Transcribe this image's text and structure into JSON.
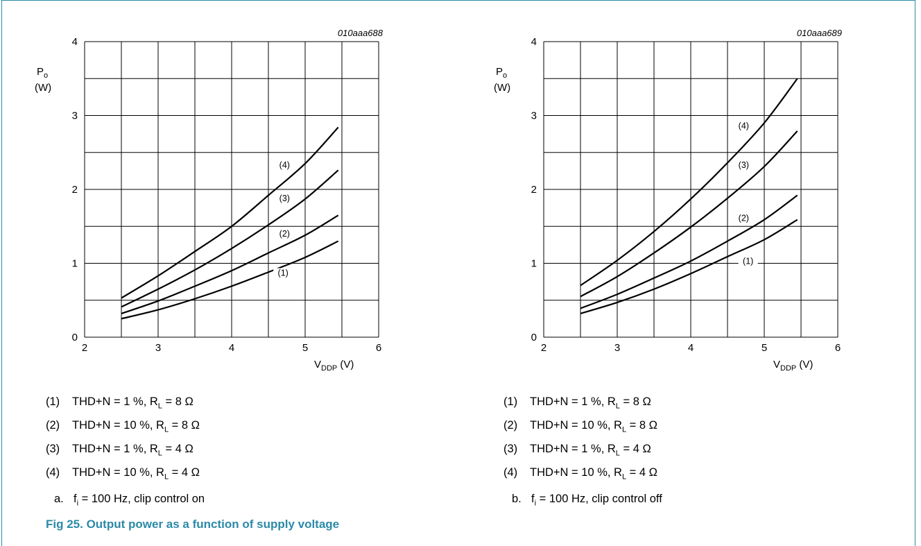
{
  "figure": {
    "title": "Fig 25.   Output power as a function of supply voltage",
    "accent_color": "#2a8aa8"
  },
  "chart_data": [
    {
      "type": "line",
      "id_code": "010aaa688",
      "ylabel_line1": "P",
      "ylabel_sub": "o",
      "ylabel_line2": "(W)",
      "xlabel_main": "V",
      "xlabel_sub": "DDP",
      "xlabel_unit": " (V)",
      "xlim": [
        2,
        6
      ],
      "ylim": [
        0,
        4
      ],
      "xticks": [
        "2",
        "3",
        "4",
        "5",
        "6"
      ],
      "yticks": [
        "0",
        "1",
        "2",
        "3",
        "4"
      ],
      "grid": true,
      "x": [
        2.5,
        3.0,
        3.5,
        4.0,
        4.5,
        5.0,
        5.45
      ],
      "series": [
        {
          "name": "(1)",
          "values": [
            0.25,
            0.37,
            0.52,
            0.69,
            0.88,
            1.08,
            1.3
          ]
        },
        {
          "name": "(2)",
          "values": [
            0.32,
            0.49,
            0.69,
            0.9,
            1.14,
            1.38,
            1.65
          ]
        },
        {
          "name": "(3)",
          "values": [
            0.41,
            0.65,
            0.91,
            1.2,
            1.52,
            1.87,
            2.26
          ]
        },
        {
          "name": "(4)",
          "values": [
            0.53,
            0.83,
            1.16,
            1.5,
            1.92,
            2.35,
            2.84
          ]
        }
      ],
      "label_pos": [
        [
          4.7,
          0.84
        ],
        [
          4.72,
          1.37
        ],
        [
          4.72,
          1.85
        ],
        [
          4.72,
          2.3
        ]
      ],
      "legend": [
        {
          "num": "(1)",
          "text": "THD+N  = 1 %, R",
          "sub": "L",
          "rest": " = 8 Ω"
        },
        {
          "num": "(2)",
          "text": "THD+N  = 10 %, R",
          "sub": "L",
          "rest": " = 8 Ω"
        },
        {
          "num": "(3)",
          "text": "THD+N  = 1 %, R",
          "sub": "L",
          "rest": " = 4 Ω"
        },
        {
          "num": "(4)",
          "text": "THD+N  = 10 %, R",
          "sub": "L",
          "rest": " = 4 Ω"
        }
      ],
      "caption": {
        "letter": "a.",
        "pre": "f",
        "sub": "i",
        "post": " = 100 Hz, clip control on"
      }
    },
    {
      "type": "line",
      "id_code": "010aaa689",
      "ylabel_line1": "P",
      "ylabel_sub": "o",
      "ylabel_line2": "(W)",
      "xlabel_main": "V",
      "xlabel_sub": "DDP",
      "xlabel_unit": " (V)",
      "xlim": [
        2,
        6
      ],
      "ylim": [
        0,
        4
      ],
      "xticks": [
        "2",
        "3",
        "4",
        "5",
        "6"
      ],
      "yticks": [
        "0",
        "1",
        "2",
        "3",
        "4"
      ],
      "grid": true,
      "x": [
        2.5,
        3.0,
        3.5,
        4.0,
        4.5,
        5.0,
        5.45
      ],
      "series": [
        {
          "name": "(1)",
          "values": [
            0.32,
            0.47,
            0.65,
            0.86,
            1.09,
            1.32,
            1.59
          ]
        },
        {
          "name": "(2)",
          "values": [
            0.39,
            0.58,
            0.8,
            1.03,
            1.3,
            1.59,
            1.92
          ]
        },
        {
          "name": "(3)",
          "values": [
            0.55,
            0.82,
            1.14,
            1.49,
            1.88,
            2.31,
            2.79
          ]
        },
        {
          "name": "(4)",
          "values": [
            0.7,
            1.04,
            1.43,
            1.87,
            2.36,
            2.9,
            3.5
          ]
        }
      ],
      "label_pos": [
        [
          4.78,
          1.0
        ],
        [
          4.72,
          1.58
        ],
        [
          4.72,
          2.3
        ],
        [
          4.72,
          2.83
        ]
      ],
      "legend": [
        {
          "num": "(1)",
          "text": "THD+N  = 1 %, R",
          "sub": "L",
          "rest": " = 8 Ω"
        },
        {
          "num": "(2)",
          "text": "THD+N  = 10 %, R",
          "sub": "L",
          "rest": " = 8 Ω"
        },
        {
          "num": "(3)",
          "text": "THD+N  = 1 %, R",
          "sub": "L",
          "rest": " = 4 Ω"
        },
        {
          "num": "(4)",
          "text": "THD+N  = 10 %, R",
          "sub": "L",
          "rest": " = 4 Ω"
        }
      ],
      "caption": {
        "letter": "b.",
        "pre": "f",
        "sub": "i",
        "post": " = 100 Hz, clip control off"
      }
    }
  ]
}
